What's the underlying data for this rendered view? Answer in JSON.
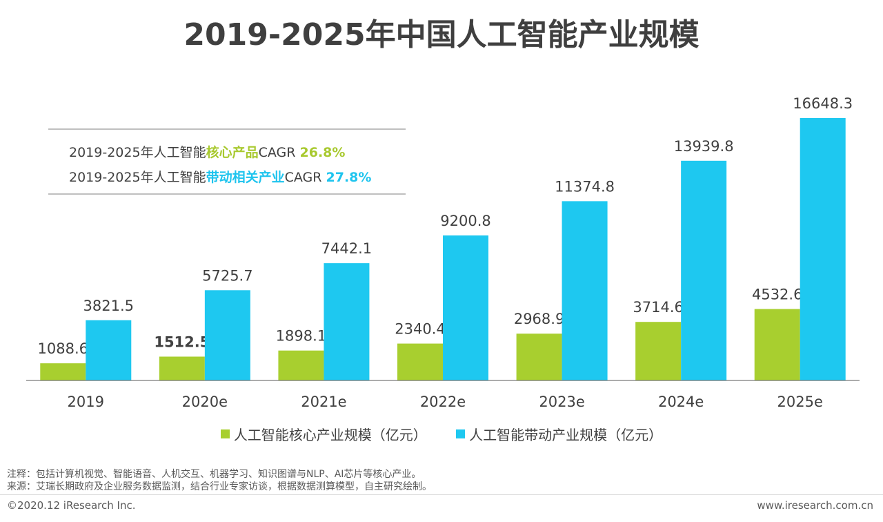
{
  "title": "2019-2025年中国人工智能产业规模",
  "cagr": {
    "line1": {
      "prefix": "2019-2025年人工智能",
      "highlight": "核心产品",
      "suffix": "CAGR ",
      "value": "26.8%"
    },
    "line2": {
      "prefix": "2019-2025年人工智能",
      "highlight": "带动相关产业",
      "suffix": "CAGR ",
      "value": "27.8%"
    }
  },
  "colors": {
    "core": "#a8cf2f",
    "related": "#1ec8f0"
  },
  "chart_data": {
    "type": "bar",
    "categories": [
      "2019",
      "2020e",
      "2021e",
      "2022e",
      "2023e",
      "2024e",
      "2025e"
    ],
    "series": [
      {
        "name": "人工智能核心产业规模（亿元）",
        "values": [
          1088.6,
          1512.5,
          1898.1,
          2340.4,
          2968.9,
          3714.6,
          4532.6
        ],
        "labels": [
          "1088.6",
          "1512.5",
          "1898.1",
          "2340.4",
          "2968.9",
          "3714.6",
          "4532.6"
        ]
      },
      {
        "name": "人工智能带动产业规模（亿元）",
        "values": [
          3821.5,
          5725.7,
          7442.1,
          9200.8,
          11374.8,
          13939.8,
          16648.3
        ],
        "labels": [
          "3821.5",
          "5725.7",
          "7442.1",
          "9200.8",
          "11374.8",
          "13939.8",
          "16648.3"
        ]
      }
    ],
    "ylim": [
      0,
      16648.3
    ],
    "grid": false,
    "legend_position": "bottom"
  },
  "legend": {
    "core": "人工智能核心产业规模（亿元）",
    "related": "人工智能带动产业规模（亿元）"
  },
  "notes": {
    "note1": "注释：包括计算机视觉、智能语音、人机交互、机器学习、知识图谱与NLP、AI芯片等核心产业。",
    "note2": "来源：艾瑞长期政府及企业服务数据监测，结合行业专家访谈，根据数据测算模型，自主研究绘制。"
  },
  "footer": {
    "copyright": "©2020.12 iResearch Inc.",
    "url": "www.iresearch.com.cn"
  }
}
